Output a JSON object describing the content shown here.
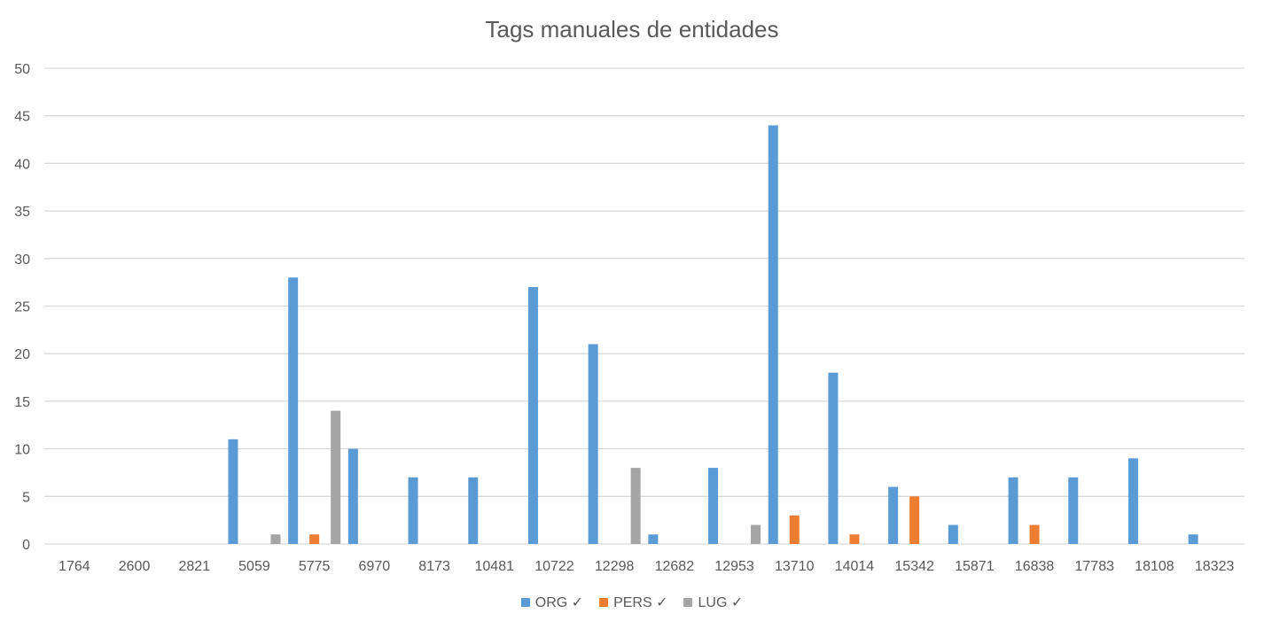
{
  "chart_data": {
    "type": "bar",
    "title": "Tags manuales de entidades",
    "xlabel": "",
    "ylabel": "",
    "ylim": [
      0,
      50
    ],
    "yticks": [
      0,
      5,
      10,
      15,
      20,
      25,
      30,
      35,
      40,
      45,
      50
    ],
    "grid": true,
    "legend_position": "bottom",
    "categories": [
      "1764",
      "2600",
      "2821",
      "5059",
      "5775",
      "6970",
      "8173",
      "10481",
      "10722",
      "12298",
      "12682",
      "12953",
      "13710",
      "14014",
      "15342",
      "15871",
      "16838",
      "17783",
      "18108",
      "18323"
    ],
    "series": [
      {
        "name": "ORG ✓",
        "color": "#5B9BD5",
        "values": [
          0,
          0,
          0,
          11,
          28,
          10,
          7,
          7,
          27,
          21,
          1,
          8,
          44,
          18,
          6,
          2,
          7,
          7,
          9,
          1
        ]
      },
      {
        "name": "PERS ✓",
        "color": "#ED7D31",
        "values": [
          0,
          0,
          0,
          0,
          1,
          0,
          0,
          0,
          0,
          0,
          0,
          0,
          3,
          1,
          5,
          0,
          2,
          0,
          0,
          0
        ]
      },
      {
        "name": "LUG ✓",
        "color": "#A5A5A5",
        "values": [
          0,
          0,
          0,
          1,
          14,
          0,
          0,
          0,
          0,
          8,
          0,
          2,
          0,
          0,
          0,
          0,
          0,
          0,
          0,
          0
        ]
      }
    ]
  }
}
